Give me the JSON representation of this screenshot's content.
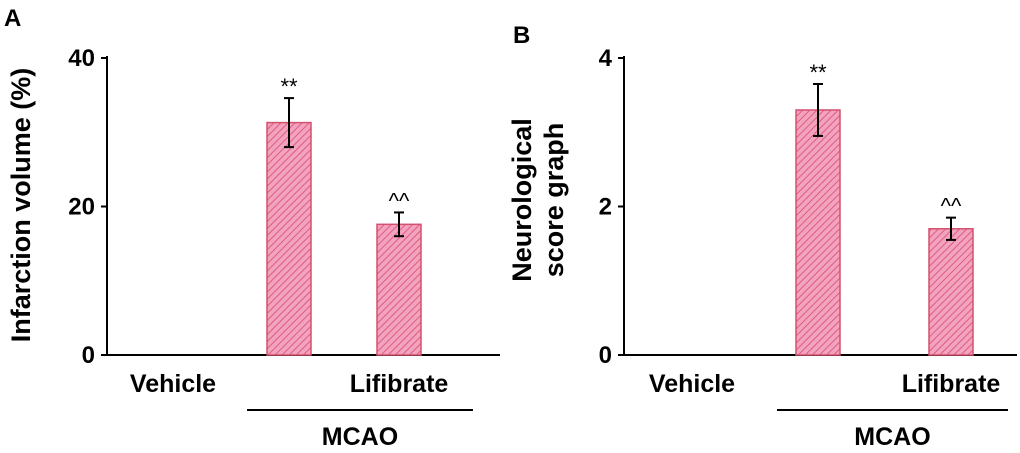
{
  "chart_data": [
    {
      "panel": "A",
      "type": "bar",
      "ylabel": "Infarction volume (%)",
      "ylim": [
        0,
        40
      ],
      "yticks": [
        0,
        20,
        40
      ],
      "categories": [
        "Vehicle",
        "",
        "Lifibrate"
      ],
      "values": [
        0,
        31.3,
        17.6
      ],
      "errors": [
        0,
        3.3,
        1.6
      ],
      "annotations": [
        "",
        "**",
        "^^"
      ],
      "group_label": "MCAO",
      "bar_color": "#e8608a"
    },
    {
      "panel": "B",
      "type": "bar",
      "ylabel_lines": [
        "Neurological",
        "score graph"
      ],
      "ylim": [
        0,
        4
      ],
      "yticks": [
        0,
        2,
        4
      ],
      "categories": [
        "Vehicle",
        "",
        "Lifibrate"
      ],
      "values": [
        0,
        3.3,
        1.7
      ],
      "errors": [
        0,
        0.35,
        0.15
      ],
      "annotations": [
        "",
        "**",
        "^^"
      ],
      "group_label": "MCAO",
      "bar_color": "#e8608a"
    }
  ]
}
